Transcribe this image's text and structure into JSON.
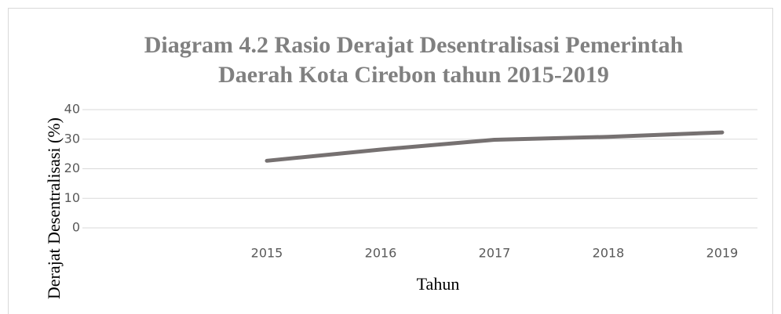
{
  "chart_data": {
    "type": "line",
    "title": [
      "Diagram 4.2 Rasio Derajat Desentralisasi Pemerintah",
      "Daerah Kota Cirebon tahun 2015-2019"
    ],
    "x_label": "Tahun",
    "y_label": "Derajat Desentralisasi (%)",
    "categories": [
      null,
      "2015",
      "2016",
      "2017",
      "2018",
      "2019"
    ],
    "series": [
      {
        "name": "Derajat Desentralisasi",
        "color": "#767171",
        "values": [
          null,
          22.7,
          26.5,
          29.8,
          30.8,
          32.3
        ]
      }
    ],
    "ylim": [
      0,
      40
    ],
    "yticks": [
      0,
      10,
      20,
      30,
      40
    ],
    "grid": true
  }
}
